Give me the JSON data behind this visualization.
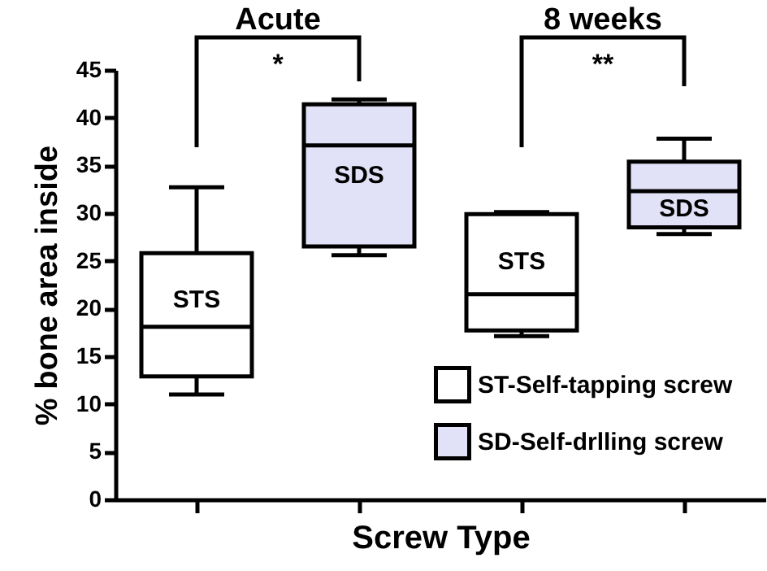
{
  "chart_data": {
    "type": "box",
    "xlabel": "Screw Type",
    "ylabel": "% bone area inside",
    "categories": [
      null,
      null,
      null,
      null
    ],
    "series": [
      {
        "name": "ST-Self-tapping screw",
        "color": "#ffffff",
        "boxes": [
          {
            "low": 11.0,
            "q1": 12.9,
            "median": 18.1,
            "q3": 25.8,
            "high": 32.7
          },
          null,
          {
            "low": 17.1,
            "q1": 17.7,
            "median": 21.5,
            "q3": 29.9,
            "high": 30.1
          },
          null
        ]
      },
      {
        "name": "SD-Self-drlling screw",
        "color": "#e1e1f7",
        "boxes": [
          null,
          {
            "low": 25.6,
            "q1": 26.5,
            "median": 37.1,
            "q3": 41.4,
            "high": 41.9
          },
          null,
          {
            "low": 27.8,
            "q1": 28.5,
            "median": 32.3,
            "q3": 35.4,
            "high": 37.8
          }
        ]
      }
    ],
    "ylim": [
      0,
      45
    ],
    "yticks": [
      0,
      5,
      10,
      15,
      20,
      25,
      30,
      35,
      40,
      45
    ],
    "legend": "bottom right",
    "tick_labels": "y",
    "annotations": [
      "Acute",
      "8 weeks",
      "*",
      "**",
      "STS",
      "SDS",
      "STS",
      "SDS"
    ]
  }
}
